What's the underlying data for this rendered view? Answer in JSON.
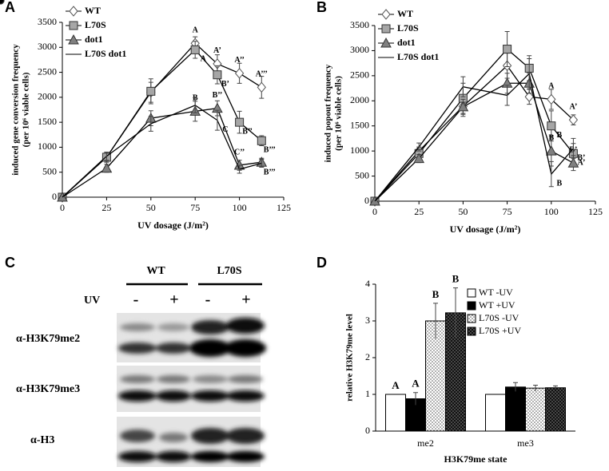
{
  "chart_data": [
    {
      "type": "line",
      "panel": "A",
      "xlabel": "UV dosage (J/m²)",
      "ylabel": [
        "induced gene conversion frequency",
        "(per 10⁶ viable cells)"
      ],
      "x": [
        0,
        25,
        50,
        75,
        87.5,
        100,
        112.5
      ],
      "xlim": [
        0,
        125
      ],
      "xticks": [
        0,
        25,
        50,
        75,
        100,
        125
      ],
      "ylim": [
        0,
        3500
      ],
      "yticks": [
        0,
        500,
        1000,
        1500,
        2000,
        2500,
        3000,
        3500
      ],
      "legend": "upper left",
      "series": [
        {
          "name": "WT",
          "color": "#ffffff",
          "marker": "diamond",
          "values": [
            0,
            800,
            2100,
            3080,
            2670,
            2480,
            2200
          ],
          "errors": [
            0,
            80,
            200,
            130,
            180,
            200,
            220
          ],
          "labels": [
            null,
            null,
            null,
            "A",
            "A’",
            "A’’",
            "A’’’"
          ]
        },
        {
          "name": "L70S",
          "color": "#a6a6a6",
          "marker": "square",
          "values": [
            0,
            800,
            2120,
            2950,
            2450,
            1500,
            1130
          ],
          "errors": [
            0,
            100,
            250,
            170,
            180,
            220,
            100
          ],
          "labels": [
            null,
            null,
            null,
            "A",
            "B’",
            "B’’",
            "B’’’"
          ]
        },
        {
          "name": "dot1",
          "color": "#808080",
          "marker": "triangle",
          "values": [
            0,
            580,
            1580,
            1720,
            1780,
            640,
            700
          ],
          "errors": [
            0,
            80,
            150,
            200,
            150,
            100,
            80
          ],
          "labels": [
            null,
            null,
            null,
            "B",
            "B’’",
            "C’’",
            null
          ]
        },
        {
          "name": "L70S dot1",
          "color": "#000000",
          "marker": "circle",
          "values": [
            0,
            820,
            1470,
            1840,
            1540,
            560,
            680
          ],
          "errors": [
            0,
            80,
            150,
            150,
            200,
            80,
            80
          ],
          "labels": [
            null,
            null,
            null,
            null,
            "C",
            null,
            "B’’’"
          ]
        }
      ]
    },
    {
      "type": "line",
      "panel": "B",
      "xlabel": "UV dosage (J/m²)",
      "ylabel": [
        "induced popout frequency",
        "(per 10⁶ viable cells)"
      ],
      "x": [
        0,
        25,
        50,
        75,
        87.5,
        100,
        112.5
      ],
      "xlim": [
        0,
        125
      ],
      "xticks": [
        0,
        25,
        50,
        75,
        100,
        125
      ],
      "ylim": [
        0,
        3500
      ],
      "yticks": [
        0,
        500,
        1000,
        1500,
        2000,
        2500,
        3000,
        3500
      ],
      "legend": "upper left",
      "series": [
        {
          "name": "WT",
          "color": "#ffffff",
          "marker": "diamond",
          "values": [
            0,
            1000,
            1890,
            2700,
            2080,
            2030,
            1620
          ],
          "errors": [
            0,
            80,
            200,
            250,
            150,
            200,
            100
          ],
          "labels": [
            null,
            null,
            null,
            null,
            null,
            "A",
            "A’"
          ]
        },
        {
          "name": "L70S",
          "color": "#a6a6a6",
          "marker": "square",
          "values": [
            0,
            950,
            2050,
            3030,
            2650,
            1500,
            950
          ],
          "errors": [
            0,
            80,
            300,
            350,
            250,
            300,
            200
          ],
          "labels": [
            null,
            null,
            null,
            null,
            null,
            "B",
            "A’"
          ]
        },
        {
          "name": "dot1",
          "color": "#808080",
          "marker": "triangle",
          "values": [
            0,
            850,
            1880,
            2350,
            2350,
            1000,
            760
          ],
          "errors": [
            0,
            80,
            150,
            200,
            200,
            300,
            150
          ],
          "labels": [
            null,
            null,
            null,
            null,
            null,
            "B",
            "B’"
          ]
        },
        {
          "name": "L70S dot1",
          "color": "#000000",
          "marker": "circle",
          "values": [
            0,
            1080,
            2280,
            2110,
            2540,
            540,
            1050
          ],
          "errors": [
            0,
            80,
            200,
            200,
            300,
            250,
            200
          ],
          "labels": [
            null,
            null,
            null,
            null,
            null,
            "B",
            "B’"
          ]
        }
      ]
    },
    {
      "type": "bar",
      "panel": "D",
      "xlabel": "H3K79me state",
      "ylabel": "relative H3K79me level",
      "categories": [
        "me2",
        "me3"
      ],
      "ylim": [
        0,
        4
      ],
      "yticks": [
        0,
        1,
        2,
        3,
        4
      ],
      "legend": "upper right",
      "series": [
        {
          "name": "WT -UV",
          "color": "#ffffff",
          "values": [
            1,
            1
          ],
          "errors": [
            0,
            0
          ],
          "value_labels": [
            "A",
            null
          ]
        },
        {
          "name": "WT +UV",
          "color": "#000000",
          "values": [
            0.88,
            1.2
          ],
          "errors": [
            0.17,
            0.12
          ],
          "value_labels": [
            "A",
            null
          ]
        },
        {
          "name": "L70S -UV",
          "color": "#d9d9d9",
          "values": [
            3.0,
            1.17
          ],
          "errors": [
            0.48,
            0.08
          ],
          "value_labels": [
            "B",
            null
          ]
        },
        {
          "name": "L70S +UV",
          "color": "#333333",
          "values": [
            3.22,
            1.18
          ],
          "errors": [
            0.68,
            0.05
          ],
          "value_labels": [
            "B",
            null
          ]
        }
      ]
    }
  ],
  "blot": {
    "panel": "C",
    "strains": [
      "WT",
      "L70S"
    ],
    "uv_label": "UV",
    "uv": [
      "-",
      "+",
      "-",
      "+"
    ],
    "rows": [
      "α-H3K79me2",
      "α-H3K79me3",
      "α-H3"
    ]
  }
}
